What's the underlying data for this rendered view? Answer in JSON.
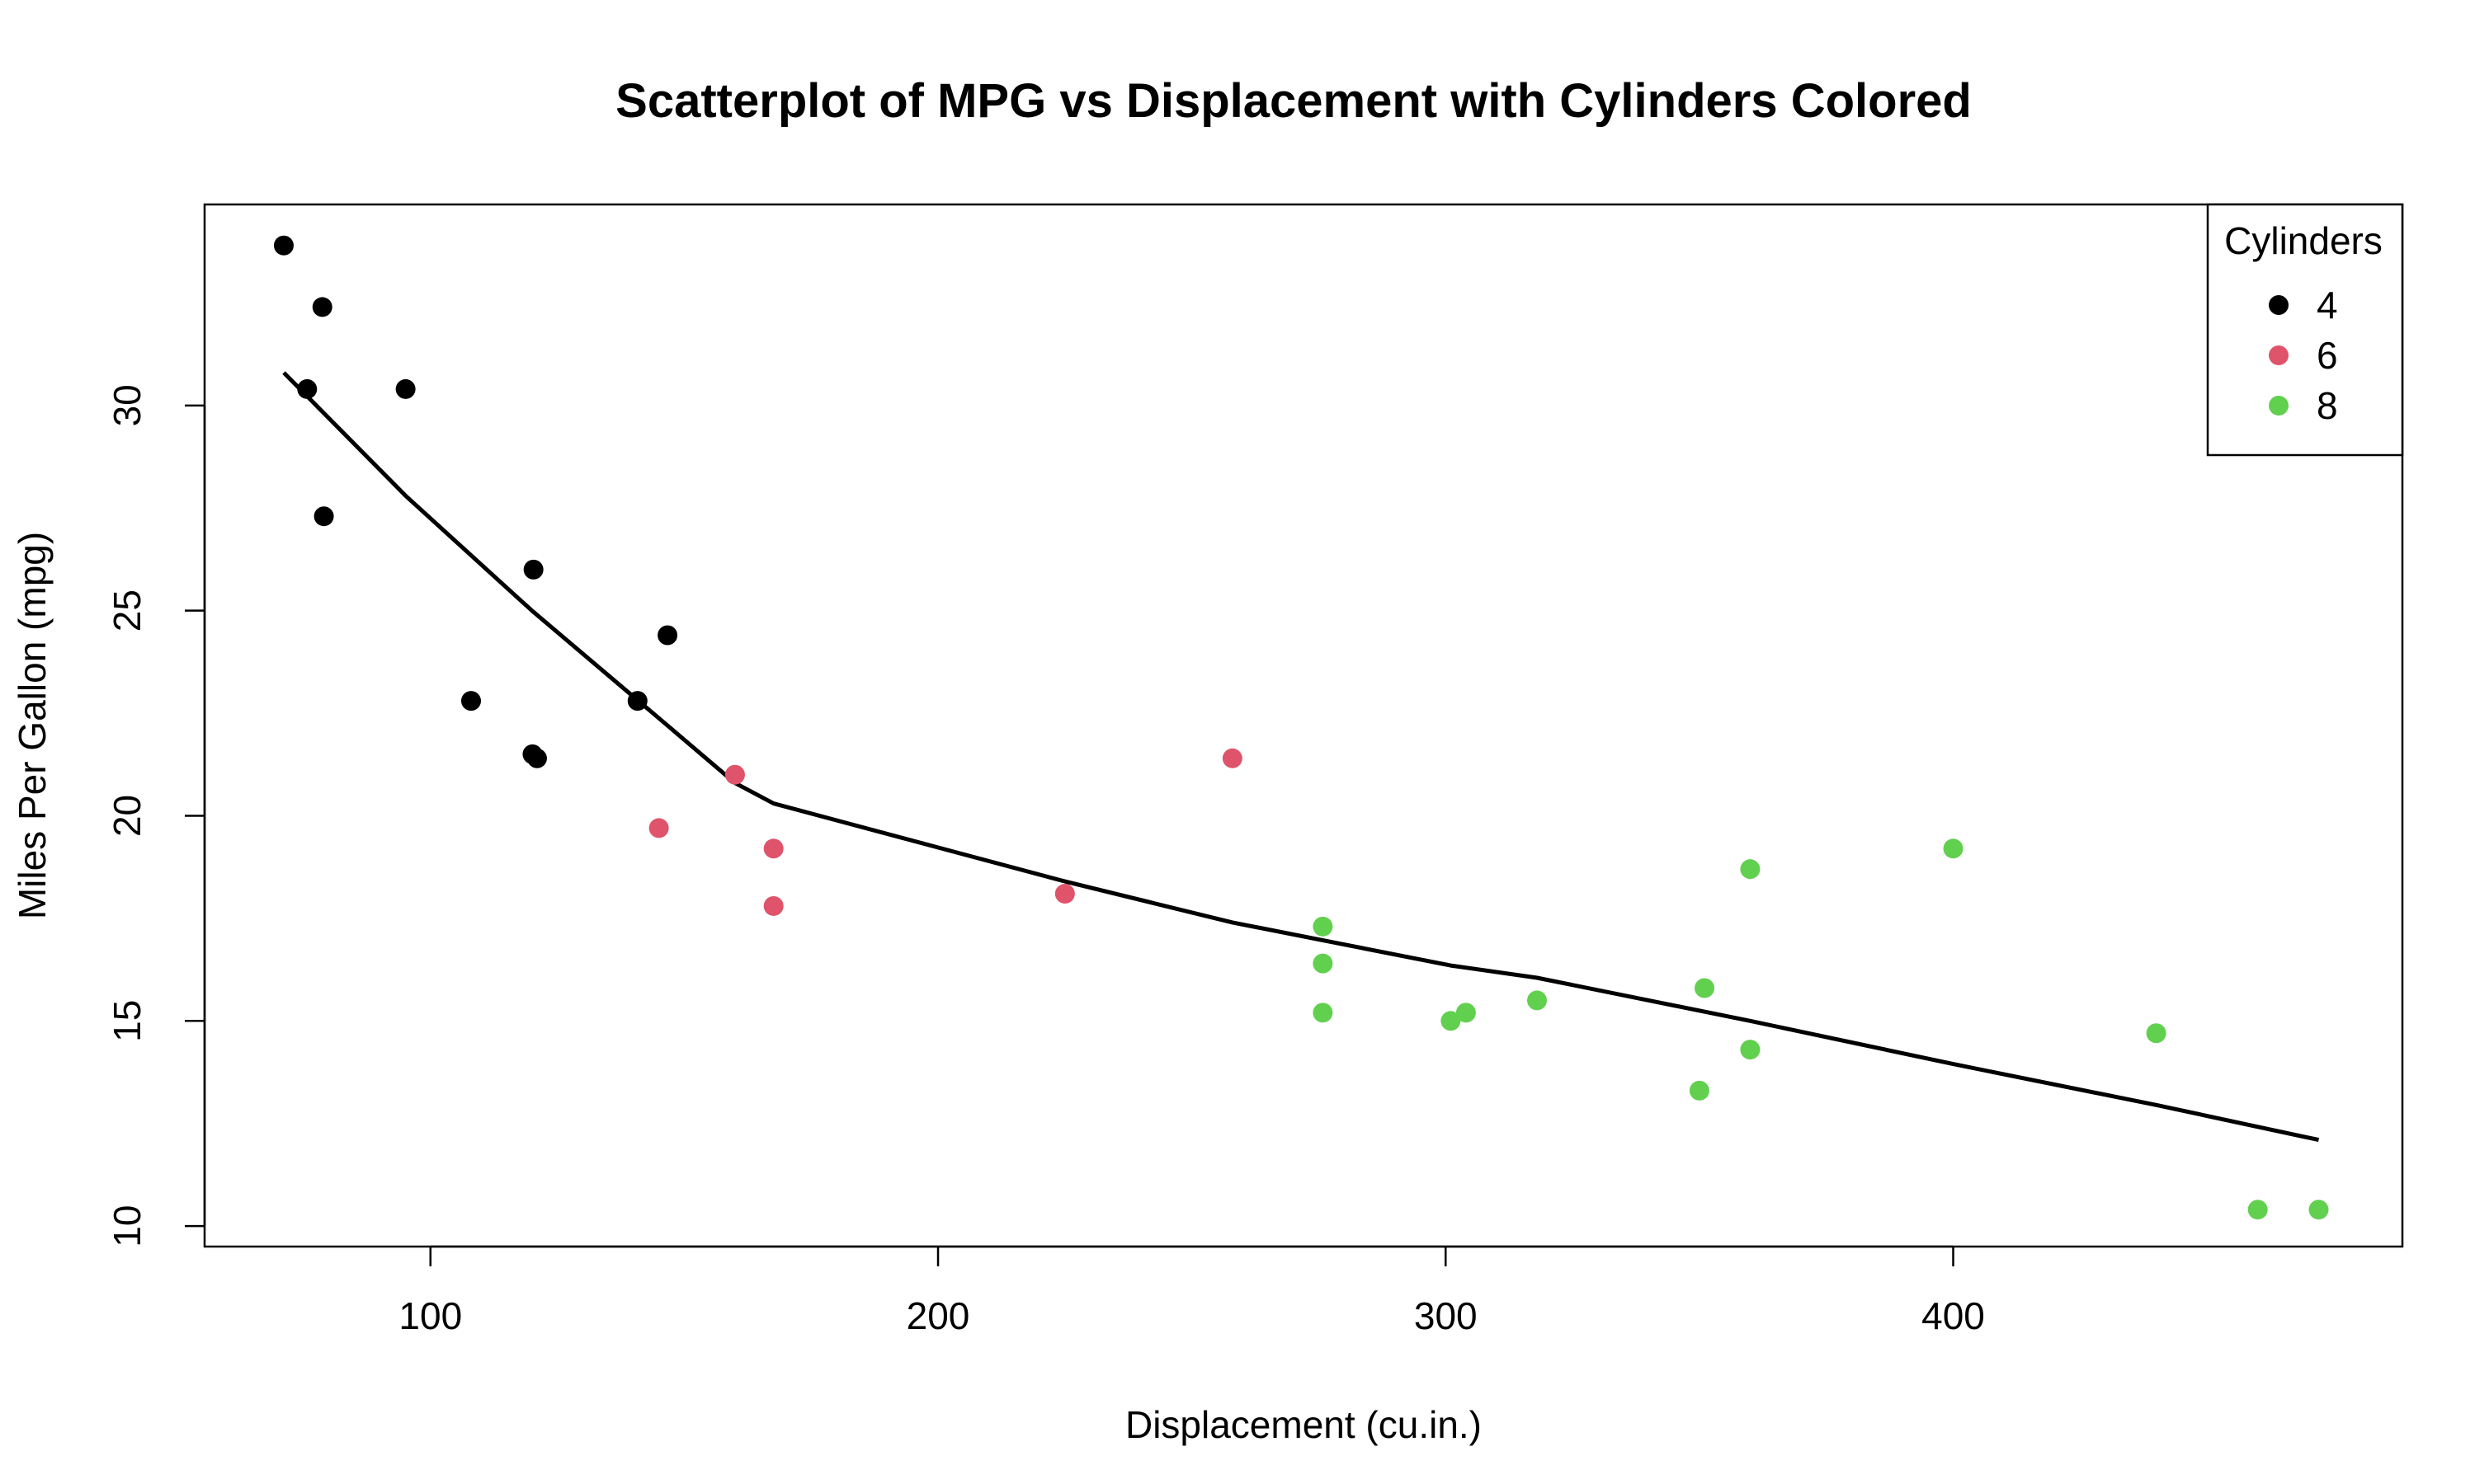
{
  "chart_data": {
    "type": "scatter",
    "title": "Scatterplot of MPG vs Displacement with Cylinders Colored",
    "xlabel": "Displacement (cu.in.)",
    "ylabel": "Miles Per Gallon (mpg)",
    "xlim": [
      55.5,
      488.5
    ],
    "ylim": [
      9.5,
      34.9
    ],
    "x_ticks": [
      100,
      200,
      300,
      400
    ],
    "y_ticks": [
      10,
      15,
      20,
      25,
      30
    ],
    "grid": false,
    "legend": {
      "title": "Cylinders",
      "placement": "top-right"
    },
    "series": [
      {
        "name": "4",
        "color": "#000000",
        "points": [
          {
            "x": 71.1,
            "y": 33.9
          },
          {
            "x": 75.7,
            "y": 30.4
          },
          {
            "x": 78.7,
            "y": 32.4
          },
          {
            "x": 79.0,
            "y": 27.3
          },
          {
            "x": 95.1,
            "y": 30.4
          },
          {
            "x": 108.0,
            "y": 22.8
          },
          {
            "x": 120.1,
            "y": 21.5
          },
          {
            "x": 120.3,
            "y": 26.0
          },
          {
            "x": 121.0,
            "y": 21.4
          },
          {
            "x": 140.8,
            "y": 22.8
          },
          {
            "x": 146.7,
            "y": 24.4
          }
        ]
      },
      {
        "name": "6",
        "color": "#DF536B",
        "points": [
          {
            "x": 145.0,
            "y": 19.7
          },
          {
            "x": 160.0,
            "y": 21.0
          },
          {
            "x": 167.6,
            "y": 19.2
          },
          {
            "x": 167.6,
            "y": 17.8
          },
          {
            "x": 225.0,
            "y": 18.1
          },
          {
            "x": 258.0,
            "y": 21.4
          }
        ]
      },
      {
        "name": "8",
        "color": "#61D04F",
        "points": [
          {
            "x": 275.8,
            "y": 16.4
          },
          {
            "x": 275.8,
            "y": 17.3
          },
          {
            "x": 275.8,
            "y": 15.2
          },
          {
            "x": 301.0,
            "y": 15.0
          },
          {
            "x": 304.0,
            "y": 15.2
          },
          {
            "x": 318.0,
            "y": 15.5
          },
          {
            "x": 350.0,
            "y": 13.3
          },
          {
            "x": 351.0,
            "y": 15.8
          },
          {
            "x": 360.0,
            "y": 18.7
          },
          {
            "x": 360.0,
            "y": 14.3
          },
          {
            "x": 400.0,
            "y": 19.2
          },
          {
            "x": 440.0,
            "y": 14.7
          },
          {
            "x": 460.0,
            "y": 10.4
          },
          {
            "x": 472.0,
            "y": 10.4
          }
        ]
      }
    ],
    "trend_line": {
      "color": "#000000",
      "points": [
        {
          "x": 71.1,
          "y": 30.8
        },
        {
          "x": 95.1,
          "y": 27.8
        },
        {
          "x": 120.0,
          "y": 25.0
        },
        {
          "x": 146.7,
          "y": 22.2
        },
        {
          "x": 160.0,
          "y": 20.8
        },
        {
          "x": 167.6,
          "y": 20.3
        },
        {
          "x": 225.0,
          "y": 18.4
        },
        {
          "x": 258.0,
          "y": 17.4
        },
        {
          "x": 301.0,
          "y": 16.35
        },
        {
          "x": 318.0,
          "y": 16.05
        },
        {
          "x": 360.0,
          "y": 15.0
        },
        {
          "x": 400.0,
          "y": 13.95
        },
        {
          "x": 440.0,
          "y": 12.95
        },
        {
          "x": 472.0,
          "y": 12.1
        }
      ]
    }
  }
}
